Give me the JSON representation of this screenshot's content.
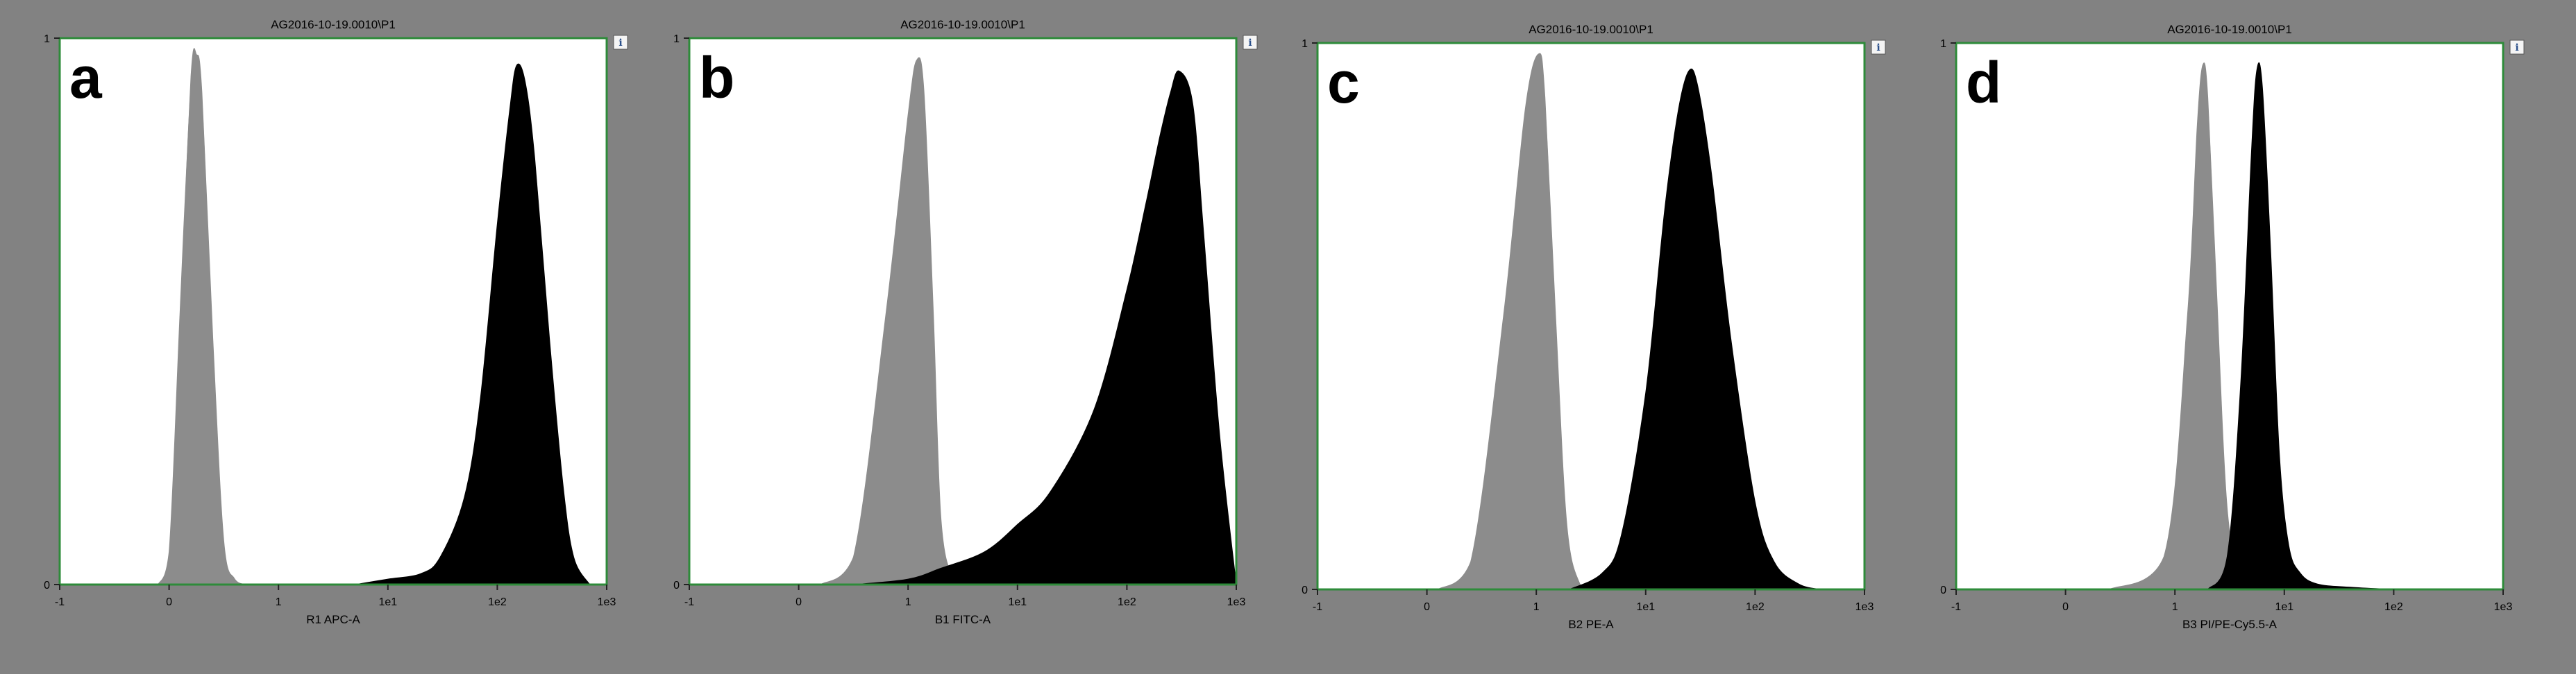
{
  "colors": {
    "panel_bg": "#828282",
    "plot_bg": "#ffffff",
    "plot_border": "#2e8b3a",
    "control_series": "#8c8c8c",
    "sample_series": "#000000",
    "text": "#000000"
  },
  "chart_data": [
    {
      "type": "area",
      "panel_letter": "a",
      "title": "AG2016-10-19.0010\\P1",
      "info_icon_label": "i",
      "xlabel": "R1 APC-A",
      "ylabel": "",
      "x_scale": "biexponential",
      "x_ticks": [
        "-1",
        "0",
        "1",
        "1e1",
        "1e2",
        "1e3"
      ],
      "y_ticks": [
        "0",
        "1"
      ],
      "ylim": [
        0,
        1
      ],
      "grid": false,
      "series": [
        {
          "color": "#8c8c8c",
          "x": [
            -0.1,
            0.0,
            0.1,
            0.2,
            0.25,
            0.3,
            0.4,
            0.5,
            0.6,
            0.7
          ],
          "y": [
            0.0,
            0.06,
            0.5,
            0.93,
            0.97,
            0.9,
            0.45,
            0.08,
            0.01,
            0.0
          ]
        },
        {
          "color": "#000000",
          "x": [
            5,
            10,
            20,
            30,
            50,
            70,
            100,
            130,
            150,
            180,
            220,
            300,
            400,
            500,
            700
          ],
          "y": [
            0.0,
            0.01,
            0.02,
            0.05,
            0.16,
            0.34,
            0.66,
            0.87,
            0.95,
            0.92,
            0.78,
            0.45,
            0.18,
            0.05,
            0.0
          ]
        }
      ]
    },
    {
      "type": "area",
      "panel_letter": "b",
      "title": "AG2016-10-19.0010\\P1",
      "info_icon_label": "i",
      "xlabel": "B1 FITC-A",
      "ylabel": "",
      "x_scale": "biexponential",
      "x_ticks": [
        "-1",
        "0",
        "1",
        "1e1",
        "1e2",
        "1e3"
      ],
      "y_ticks": [
        "0",
        "1"
      ],
      "ylim": [
        0,
        1
      ],
      "grid": false,
      "series": [
        {
          "color": "#8c8c8c",
          "x": [
            0.2,
            0.5,
            0.8,
            1.0,
            1.2,
            1.4,
            1.7,
            2.0,
            2.6,
            3.5
          ],
          "y": [
            0.0,
            0.05,
            0.5,
            0.86,
            0.96,
            0.9,
            0.5,
            0.12,
            0.01,
            0.0
          ]
        },
        {
          "color": "#000000",
          "x": [
            0.5,
            1,
            2,
            5,
            10,
            20,
            50,
            100,
            150,
            200,
            250,
            300,
            400,
            500,
            700,
            1000
          ],
          "y": [
            0.0,
            0.01,
            0.03,
            0.06,
            0.11,
            0.17,
            0.32,
            0.54,
            0.7,
            0.82,
            0.9,
            0.94,
            0.88,
            0.65,
            0.28,
            0.0
          ]
        }
      ]
    },
    {
      "type": "area",
      "panel_letter": "c",
      "title": "AG2016-10-19.0010\\P1",
      "info_icon_label": "i",
      "xlabel": "B2 PE-A",
      "ylabel": "",
      "x_scale": "biexponential",
      "x_ticks": [
        "-1",
        "0",
        "1",
        "1e1",
        "1e2",
        "1e3"
      ],
      "y_ticks": [
        "0",
        "1"
      ],
      "ylim": [
        0,
        1
      ],
      "grid": false,
      "series": [
        {
          "color": "#8c8c8c",
          "x": [
            0.1,
            0.4,
            0.7,
            0.9,
            1.05,
            1.2,
            1.5,
            1.9,
            2.5,
            3.2
          ],
          "y": [
            0.0,
            0.05,
            0.5,
            0.88,
            0.98,
            0.9,
            0.5,
            0.12,
            0.01,
            0.0
          ]
        },
        {
          "color": "#000000",
          "x": [
            2,
            4,
            6,
            10,
            15,
            20,
            25,
            30,
            40,
            60,
            100,
            150,
            250,
            400
          ],
          "y": [
            0.0,
            0.03,
            0.1,
            0.36,
            0.7,
            0.88,
            0.95,
            0.92,
            0.76,
            0.46,
            0.16,
            0.05,
            0.01,
            0.0
          ]
        }
      ]
    },
    {
      "type": "area",
      "panel_letter": "d",
      "title": "AG2016-10-19.0010\\P1",
      "info_icon_label": "i",
      "xlabel": "B3 PI/PE-Cy5.5-A",
      "ylabel": "",
      "x_scale": "biexponential",
      "x_ticks": [
        "-1",
        "0",
        "1",
        "1e1",
        "1e2",
        "1e3"
      ],
      "y_ticks": [
        "0",
        "1"
      ],
      "ylim": [
        0,
        1
      ],
      "grid": false,
      "series": [
        {
          "color": "#8c8c8c",
          "x": [
            0.4,
            0.9,
            1.3,
            1.6,
            1.8,
            2.0,
            2.4,
            3.0,
            4.0,
            5.0
          ],
          "y": [
            0.0,
            0.06,
            0.5,
            0.85,
            0.96,
            0.9,
            0.55,
            0.15,
            0.02,
            0.0
          ]
        },
        {
          "color": "#000000",
          "x": [
            2.0,
            3.0,
            4.0,
            5.0,
            5.6,
            6.3,
            7.5,
            9.0,
            11,
            14,
            20,
            40,
            100
          ],
          "y": [
            0.0,
            0.06,
            0.38,
            0.8,
            0.95,
            0.92,
            0.62,
            0.25,
            0.08,
            0.03,
            0.01,
            0.004,
            0.0
          ]
        }
      ]
    }
  ]
}
